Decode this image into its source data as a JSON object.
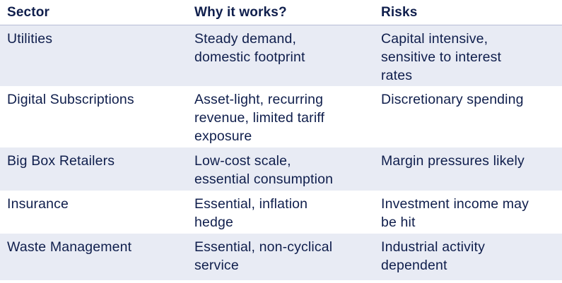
{
  "headers": [
    "Sector",
    "Why it works?",
    "Risks"
  ],
  "rows": [
    {
      "sector": "Utilities",
      "why": [
        "Steady demand,",
        "domestic footprint"
      ],
      "risks": [
        "Capital intensive,",
        "sensitive to interest",
        "rates"
      ]
    },
    {
      "sector": "Digital Subscriptions",
      "why": [
        "Asset-light, recurring",
        "revenue, limited tariff",
        "exposure"
      ],
      "risks": [
        "Discretionary spending"
      ]
    },
    {
      "sector": "Big Box Retailers",
      "why": [
        "Low-cost scale,",
        "essential consumption"
      ],
      "risks": [
        "Margin pressures likely"
      ]
    },
    {
      "sector": "Insurance",
      "why": [
        "Essential, inflation",
        "hedge"
      ],
      "risks": [
        "Investment income may",
        "be hit"
      ]
    },
    {
      "sector": "Waste Management",
      "why": [
        "Essential, non-cyclical",
        "service"
      ],
      "risks": [
        "Industrial activity",
        "dependent"
      ]
    }
  ],
  "colors": {
    "text": "#0f1e4c",
    "shaded_row": "#e8ebf4",
    "header_rule": "#b7bdd6"
  }
}
